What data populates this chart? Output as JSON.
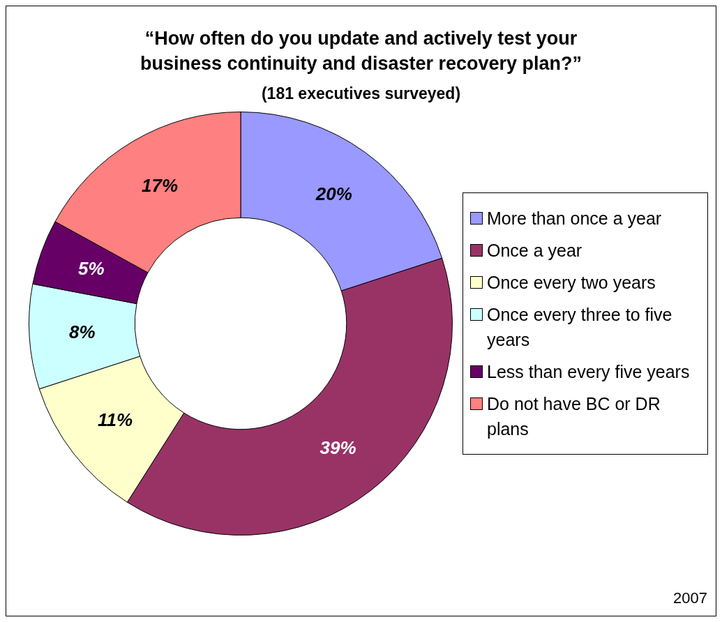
{
  "chart_data": {
    "type": "donut",
    "title": "“How often do you update and actively test your business continuity and disaster recovery  plan?”",
    "subtitle": "(181 executives surveyed)",
    "categories": [
      "More than once a year",
      "Once a year",
      "Once every two years",
      "Once every three to five years",
      "Less than every five years",
      "Do not have BC or DR plans"
    ],
    "values": [
      20,
      39,
      11,
      8,
      5,
      17
    ],
    "colors": [
      "#9999ff",
      "#993366",
      "#ffffcc",
      "#ccffff",
      "#660066",
      "#ff8080"
    ],
    "value_labels": [
      "20%",
      "39%",
      "11%",
      "8%",
      "5%",
      "17%"
    ],
    "legend": "right",
    "annotations": [
      "2007"
    ]
  }
}
